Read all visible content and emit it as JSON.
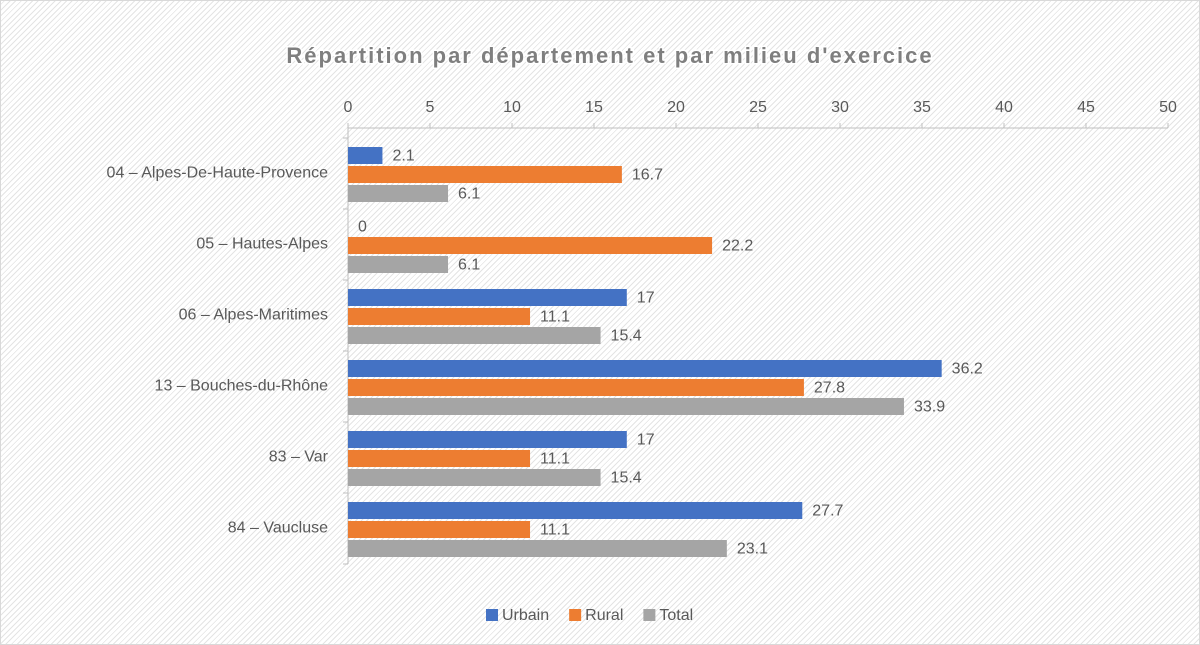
{
  "chart_data": {
    "type": "hbar",
    "title": "Répartition par département et par milieu d'exercice",
    "categories": [
      "04 – Alpes-De-Haute-Provence",
      "05 – Hautes-Alpes",
      "06 – Alpes-Maritimes",
      "13 – Bouches-du-Rhône",
      "83 – Var",
      "84 – Vaucluse"
    ],
    "series": [
      {
        "name": "Urbain",
        "color": "#4472c4",
        "values": [
          2.1,
          0,
          17,
          36.2,
          17,
          27.7
        ]
      },
      {
        "name": "Rural",
        "color": "#ed7d31",
        "values": [
          16.7,
          22.2,
          11.1,
          27.8,
          11.1,
          11.1
        ]
      },
      {
        "name": "Total",
        "color": "#a5a5a5",
        "values": [
          6.1,
          6.1,
          15.4,
          33.9,
          15.4,
          23.1
        ]
      }
    ],
    "xlim": [
      0,
      50
    ],
    "xticks": [
      0,
      5,
      10,
      15,
      20,
      25,
      30,
      35,
      40,
      45,
      50
    ],
    "legend": "bottom"
  }
}
